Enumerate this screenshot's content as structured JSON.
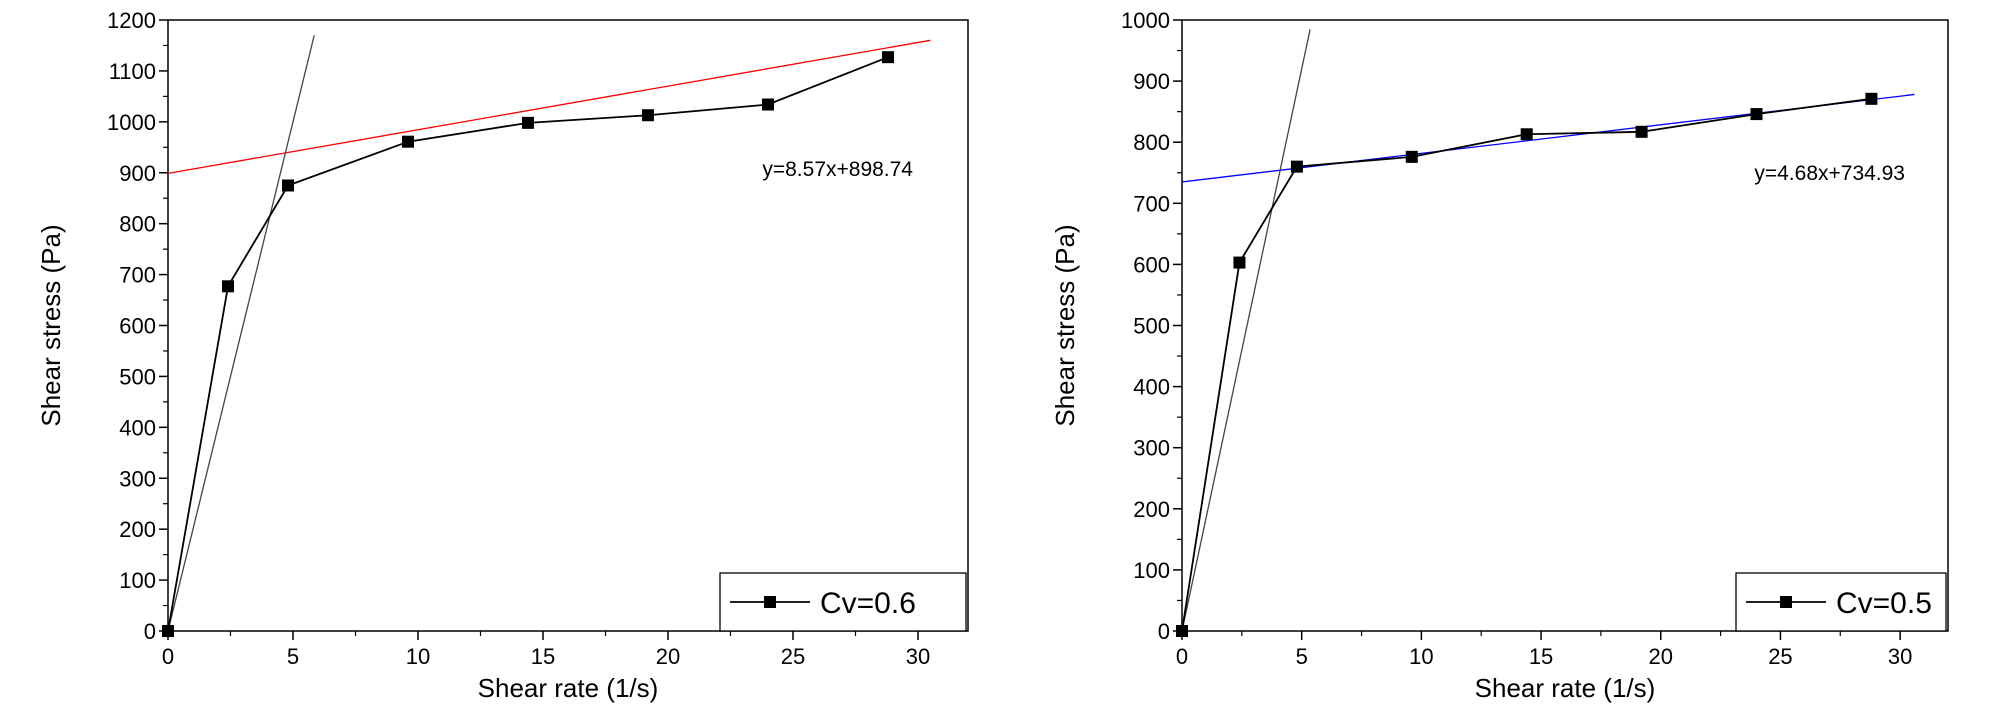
{
  "chart_data": [
    {
      "type": "scatter",
      "xlabel": "Shear rate (1/s)",
      "ylabel": "Shear stress (Pa)",
      "xlim": [
        0,
        32
      ],
      "ylim": [
        0,
        1200
      ],
      "xticks": [
        0,
        5,
        10,
        15,
        20,
        25,
        30
      ],
      "yticks": [
        0,
        100,
        200,
        300,
        400,
        500,
        600,
        700,
        800,
        900,
        1000,
        1100,
        1200
      ],
      "legend_position": "bottom-right",
      "series": [
        {
          "name": "Cv=0.6",
          "color": "#000000",
          "marker": "square",
          "x": [
            0,
            2.4,
            4.8,
            9.6,
            14.4,
            19.2,
            24.0,
            28.8
          ],
          "y": [
            0,
            677,
            875,
            961,
            998,
            1013,
            1034,
            1127
          ]
        }
      ],
      "fit_lines": [
        {
          "slope": 8.57,
          "intercept": 898.74,
          "color": "#ff0000",
          "x_range": [
            0,
            30.5
          ]
        },
        {
          "slope": 200,
          "intercept": 0,
          "color": "#444444",
          "x_range": [
            0,
            5.85
          ]
        }
      ],
      "annotation": "y=8.57x+898.74"
    },
    {
      "type": "scatter",
      "xlabel": "Shear rate (1/s)",
      "ylabel": "Shear stress (Pa)",
      "xlim": [
        0,
        32
      ],
      "ylim": [
        0,
        1000
      ],
      "xticks": [
        0,
        5,
        10,
        15,
        20,
        25,
        30
      ],
      "yticks": [
        0,
        100,
        200,
        300,
        400,
        500,
        600,
        700,
        800,
        900,
        1000
      ],
      "legend_position": "bottom-right",
      "series": [
        {
          "name": "Cv=0.5",
          "color": "#000000",
          "marker": "square",
          "x": [
            0,
            2.4,
            4.8,
            9.6,
            14.4,
            19.2,
            24.0,
            28.8
          ],
          "y": [
            0,
            603,
            760,
            776,
            813,
            817,
            846,
            871
          ]
        }
      ],
      "fit_lines": [
        {
          "slope": 4.68,
          "intercept": 734.93,
          "color": "#0000ff",
          "x_range": [
            0,
            30.6
          ]
        },
        {
          "slope": 184,
          "intercept": 0,
          "color": "#444444",
          "x_range": [
            0,
            5.35
          ]
        }
      ],
      "annotation": "y=4.68x+734.93"
    }
  ]
}
